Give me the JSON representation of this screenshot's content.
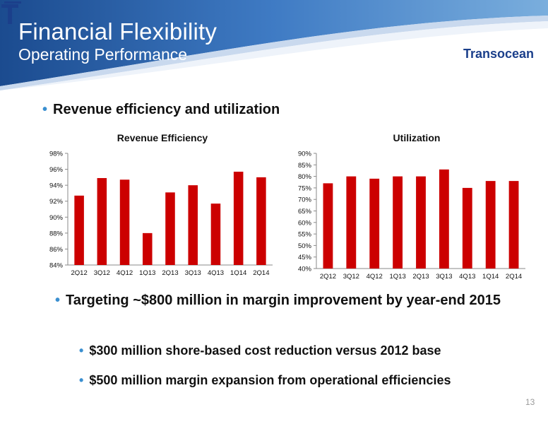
{
  "header": {
    "title": "Financial Flexibility",
    "subtitle": "Operating Performance",
    "logo_text": "Transocean"
  },
  "bullets": {
    "b1": "Revenue efficiency and utilization",
    "b2": "Targeting ~$800 million in margin improvement by year-end 2015",
    "b3": "$300 million shore-based cost reduction versus 2012 base",
    "b4": "$500 million margin expansion from operational efficiencies"
  },
  "page_number": "13",
  "colors": {
    "bar": "#cc0000",
    "header": "#1b4b8f",
    "bullet": "#3a8fd0"
  },
  "chart_data": [
    {
      "type": "bar",
      "title": "Revenue Efficiency",
      "categories": [
        "2Q12",
        "3Q12",
        "4Q12",
        "1Q13",
        "2Q13",
        "3Q13",
        "4Q13",
        "1Q14",
        "2Q14"
      ],
      "values": [
        92.7,
        94.9,
        94.7,
        88.0,
        93.1,
        94.0,
        91.7,
        95.7,
        95.0
      ],
      "ylim": [
        84,
        98
      ],
      "yticks": [
        "84%",
        "86%",
        "88%",
        "90%",
        "92%",
        "94%",
        "96%",
        "98%"
      ],
      "grid": false
    },
    {
      "type": "bar",
      "title": "Utilization",
      "categories": [
        "2Q12",
        "3Q12",
        "4Q12",
        "1Q13",
        "2Q13",
        "3Q13",
        "4Q13",
        "1Q14",
        "2Q14"
      ],
      "values": [
        77,
        80,
        79,
        80,
        80,
        83,
        75,
        78,
        78
      ],
      "ylim": [
        40,
        90
      ],
      "yticks": [
        "40%",
        "45%",
        "50%",
        "55%",
        "60%",
        "65%",
        "70%",
        "75%",
        "80%",
        "85%",
        "90%"
      ],
      "grid": false
    }
  ]
}
